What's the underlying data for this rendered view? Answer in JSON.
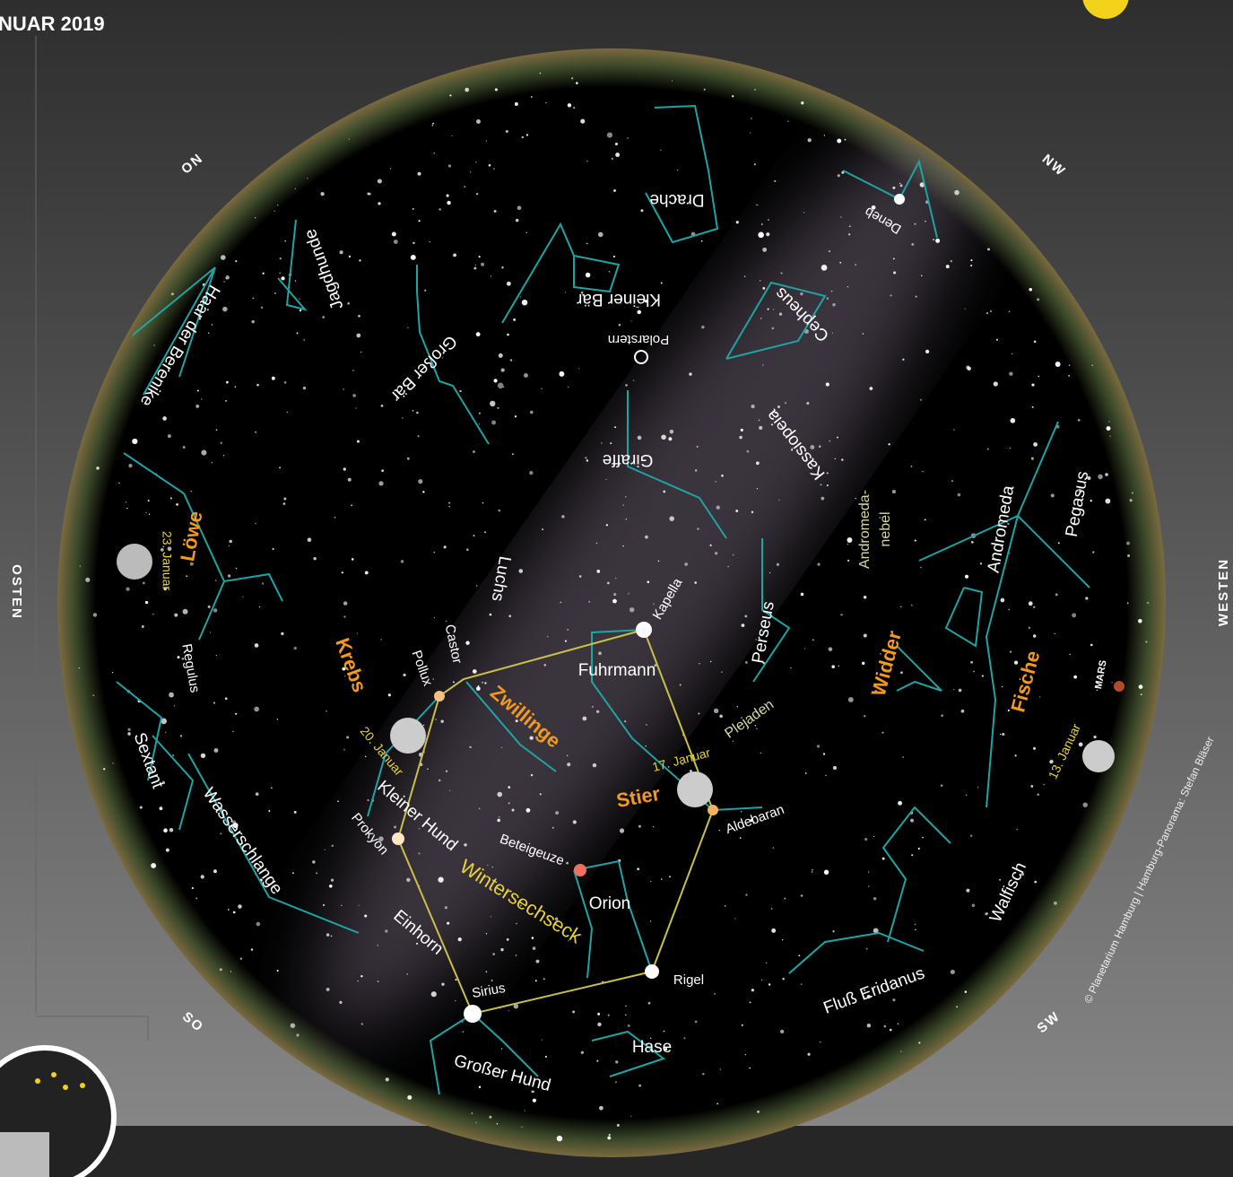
{
  "header": {
    "title": "NUAR 2019"
  },
  "directions": [
    "ON",
    "NW",
    "OSTEN",
    "WESTEN",
    "SO",
    "SW"
  ],
  "labels": [
    "Drache",
    "Kleiner Bär",
    "Polarstern",
    "Deneb",
    "Cepheus",
    "Jagdhunde",
    "Haar der Berenike",
    "Großer Bär",
    "Kassiopeia",
    "Giraffe",
    "Luchs",
    "Löwe",
    "23. Januar",
    "Regulus",
    "Krebs",
    "Pollux",
    "Castor",
    "Zwillinge",
    "Kapella",
    "Fuhrmann",
    "Perseus",
    "Andromeda-",
    "nebel",
    "Andromeda",
    "Pegasus",
    "Widder",
    "Fische",
    "MARS",
    "13. Januar",
    "Plejaden",
    "17. Januar",
    "Stier",
    "Aldebaran",
    "20. Januar",
    "Kleiner Hund",
    "Prokyon",
    "Sextant",
    "Wasserschlange",
    "Beteigeuze",
    "Wintersechseck",
    "Orion",
    "Einhorn",
    "Rigel",
    "Sirius",
    "Hase",
    "Großer Hund",
    "Fluß Eridanus",
    "Walfisch",
    "© Planetarium Hamburg | Hamburg-Panorama: Stefan Bläser"
  ]
}
